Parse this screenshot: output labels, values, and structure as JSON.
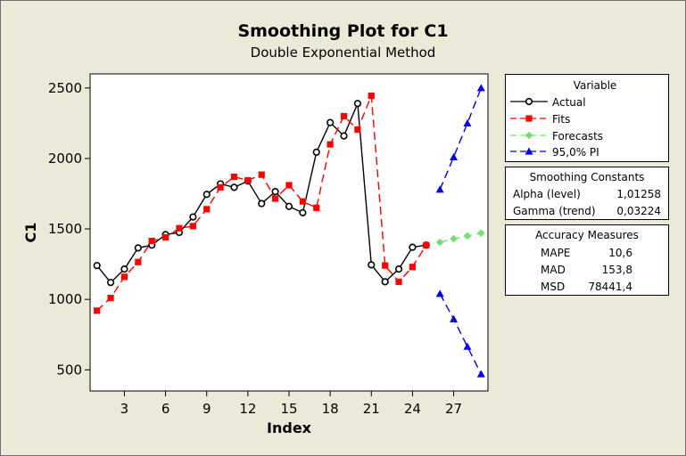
{
  "title": "Smoothing Plot for C1",
  "subtitle": "Double Exponential Method",
  "legend": {
    "heading": "Variable",
    "items": [
      {
        "label": "Actual",
        "color": "#000000",
        "marker": "circle",
        "line": "solid"
      },
      {
        "label": "Fits",
        "color": "#ff0000",
        "marker": "square",
        "line": "dashed"
      },
      {
        "label": "Forecasts",
        "color": "#77dd77",
        "marker": "diamond",
        "line": "dashed"
      },
      {
        "label": "95,0% PI",
        "color": "#0000ee",
        "marker": "triangle",
        "line": "dashed"
      }
    ]
  },
  "smoothing_constants": {
    "heading": "Smoothing Constants",
    "rows": [
      {
        "label": "Alpha (level)",
        "value": "1,01258"
      },
      {
        "label": "Gamma (trend)",
        "value": "0,03224"
      }
    ]
  },
  "accuracy_measures": {
    "heading": "Accuracy Measures",
    "rows": [
      {
        "label": "MAPE",
        "value": "10,6"
      },
      {
        "label": "MAD",
        "value": "153,8"
      },
      {
        "label": "MSD",
        "value": "78441,4"
      }
    ]
  },
  "chart_data": {
    "type": "line",
    "title": "Smoothing Plot for C1",
    "subtitle": "Double Exponential Method",
    "xlabel": "Index",
    "ylabel": "C1",
    "xlim": [
      0.5,
      29.5
    ],
    "ylim": [
      350,
      2600
    ],
    "x_ticks": [
      3,
      6,
      9,
      12,
      15,
      18,
      21,
      24,
      27
    ],
    "y_ticks": [
      500,
      1000,
      1500,
      2000,
      2500
    ],
    "legend_position": "right",
    "grid": false,
    "series": [
      {
        "name": "Actual",
        "color": "#000000",
        "marker": "circle",
        "dashed": false,
        "x": [
          1,
          2,
          3,
          4,
          5,
          6,
          7,
          8,
          9,
          10,
          11,
          12,
          13,
          14,
          15,
          16,
          17,
          18,
          19,
          20,
          21,
          22,
          23,
          24,
          25
        ],
        "y": [
          1240,
          1120,
          1215,
          1365,
          1385,
          1460,
          1475,
          1585,
          1745,
          1820,
          1795,
          1840,
          1680,
          1765,
          1660,
          1615,
          2045,
          2255,
          2160,
          2390,
          1245,
          1125,
          1215,
          1370,
          1385
        ]
      },
      {
        "name": "Fits",
        "color": "#ff0000",
        "marker": "square",
        "dashed": true,
        "x": [
          1,
          2,
          3,
          4,
          5,
          6,
          7,
          8,
          9,
          10,
          11,
          12,
          13,
          14,
          15,
          16,
          17,
          18,
          19,
          20,
          21,
          22,
          23,
          24,
          25
        ],
        "y": [
          920,
          1010,
          1160,
          1265,
          1415,
          1440,
          1505,
          1520,
          1640,
          1795,
          1870,
          1845,
          1885,
          1715,
          1810,
          1695,
          1650,
          2100,
          2300,
          2205,
          2445,
          1240,
          1125,
          1230,
          1385
        ]
      },
      {
        "name": "Forecasts",
        "color": "#77dd77",
        "marker": "diamond",
        "dashed": true,
        "x": [
          26,
          27,
          28,
          29
        ],
        "y": [
          1405,
          1430,
          1450,
          1470
        ]
      },
      {
        "name": "95,0% PI",
        "color": "#0000ee",
        "marker": "triangle",
        "dashed": true,
        "x": [
          26,
          27,
          28,
          29
        ],
        "y": [
          1780,
          2010,
          2250,
          2500
        ]
      },
      {
        "name": "95,0% PI",
        "color": "#0000ee",
        "marker": "triangle",
        "dashed": true,
        "x": [
          26,
          27,
          28,
          29
        ],
        "y": [
          1040,
          860,
          665,
          470
        ]
      }
    ]
  }
}
